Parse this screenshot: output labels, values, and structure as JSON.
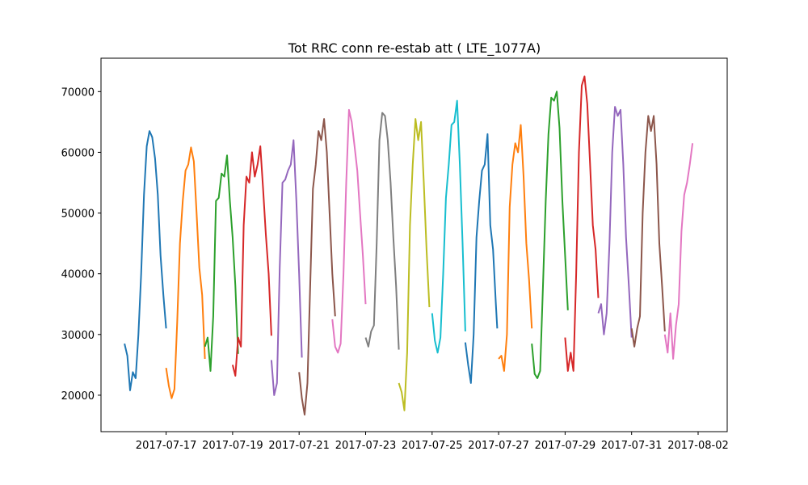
{
  "chart_data": {
    "type": "line",
    "title": "Tot RRC conn re-estab att ( LTE_1077A)",
    "xlabel": "",
    "ylabel": "",
    "x_ticks": [
      "2017-07-17",
      "2017-07-19",
      "2017-07-21",
      "2017-07-23",
      "2017-07-25",
      "2017-07-27",
      "2017-07-29",
      "2017-07-31",
      "2017-08-02"
    ],
    "y_ticks": [
      20000,
      30000,
      40000,
      50000,
      60000,
      70000
    ],
    "xlim": [
      "2017-07-15 01:00",
      "2017-08-02 21:00"
    ],
    "ylim": [
      14000,
      75500
    ],
    "grid": false,
    "series": [
      {
        "color": "#1f77b4",
        "points": [
          [
            "2017-07-15 18:00",
            28500
          ],
          [
            "2017-07-15 20:00",
            26500
          ],
          [
            "2017-07-15 22:00",
            20800
          ],
          [
            "2017-07-16 00:00",
            23800
          ],
          [
            "2017-07-16 02:00",
            22800
          ],
          [
            "2017-07-16 04:00",
            30000
          ],
          [
            "2017-07-16 06:00",
            40000
          ],
          [
            "2017-07-16 08:00",
            53000
          ],
          [
            "2017-07-16 10:00",
            61000
          ],
          [
            "2017-07-16 12:00",
            63500
          ],
          [
            "2017-07-16 14:00",
            62500
          ],
          [
            "2017-07-16 16:00",
            59000
          ],
          [
            "2017-07-16 18:00",
            53000
          ],
          [
            "2017-07-16 20:00",
            43000
          ],
          [
            "2017-07-16 22:00",
            36500
          ],
          [
            "2017-07-17 00:00",
            31000
          ]
        ]
      },
      {
        "color": "#ff7f0e",
        "points": [
          [
            "2017-07-17 00:00",
            24500
          ],
          [
            "2017-07-17 02:00",
            21500
          ],
          [
            "2017-07-17 04:00",
            19500
          ],
          [
            "2017-07-17 06:00",
            21000
          ],
          [
            "2017-07-17 08:00",
            32000
          ],
          [
            "2017-07-17 10:00",
            45000
          ],
          [
            "2017-07-17 12:00",
            52000
          ],
          [
            "2017-07-17 14:00",
            57000
          ],
          [
            "2017-07-17 16:00",
            58000
          ],
          [
            "2017-07-17 18:00",
            60800
          ],
          [
            "2017-07-17 20:00",
            58500
          ],
          [
            "2017-07-17 22:00",
            50000
          ],
          [
            "2017-07-18 00:00",
            41000
          ],
          [
            "2017-07-18 02:00",
            36500
          ],
          [
            "2017-07-18 04:00",
            26000
          ]
        ]
      },
      {
        "color": "#2ca02c",
        "points": [
          [
            "2017-07-18 04:00",
            28000
          ],
          [
            "2017-07-18 06:00",
            29500
          ],
          [
            "2017-07-18 08:00",
            24000
          ],
          [
            "2017-07-18 10:00",
            33000
          ],
          [
            "2017-07-18 12:00",
            52000
          ],
          [
            "2017-07-18 14:00",
            52500
          ],
          [
            "2017-07-18 16:00",
            56500
          ],
          [
            "2017-07-18 18:00",
            56000
          ],
          [
            "2017-07-18 20:00",
            59500
          ],
          [
            "2017-07-18 22:00",
            52000
          ],
          [
            "2017-07-19 00:00",
            46000
          ],
          [
            "2017-07-19 02:00",
            38000
          ],
          [
            "2017-07-19 04:00",
            26800
          ]
        ]
      },
      {
        "color": "#d62728",
        "points": [
          [
            "2017-07-19 00:00",
            25000
          ],
          [
            "2017-07-19 02:00",
            23200
          ],
          [
            "2017-07-19 04:00",
            29500
          ],
          [
            "2017-07-19 06:00",
            28000
          ],
          [
            "2017-07-19 08:00",
            48000
          ],
          [
            "2017-07-19 10:00",
            56000
          ],
          [
            "2017-07-19 12:00",
            55000
          ],
          [
            "2017-07-19 14:00",
            60000
          ],
          [
            "2017-07-19 16:00",
            56000
          ],
          [
            "2017-07-19 18:00",
            58000
          ],
          [
            "2017-07-19 20:00",
            61000
          ],
          [
            "2017-07-19 22:00",
            54000
          ],
          [
            "2017-07-20 00:00",
            46500
          ],
          [
            "2017-07-20 02:00",
            40000
          ],
          [
            "2017-07-20 04:00",
            29800
          ]
        ]
      },
      {
        "color": "#9467bd",
        "points": [
          [
            "2017-07-20 04:00",
            25800
          ],
          [
            "2017-07-20 06:00",
            20000
          ],
          [
            "2017-07-20 08:00",
            22000
          ],
          [
            "2017-07-20 10:00",
            41000
          ],
          [
            "2017-07-20 12:00",
            55000
          ],
          [
            "2017-07-20 14:00",
            55500
          ],
          [
            "2017-07-20 16:00",
            57000
          ],
          [
            "2017-07-20 18:00",
            58000
          ],
          [
            "2017-07-20 20:00",
            62000
          ],
          [
            "2017-07-20 22:00",
            52000
          ],
          [
            "2017-07-21 00:00",
            40000
          ],
          [
            "2017-07-21 02:00",
            26200
          ]
        ]
      },
      {
        "color": "#8c564b",
        "points": [
          [
            "2017-07-21 00:00",
            23800
          ],
          [
            "2017-07-21 02:00",
            19500
          ],
          [
            "2017-07-21 04:00",
            16800
          ],
          [
            "2017-07-21 06:00",
            22000
          ],
          [
            "2017-07-21 08:00",
            38000
          ],
          [
            "2017-07-21 10:00",
            54000
          ],
          [
            "2017-07-21 12:00",
            58000
          ],
          [
            "2017-07-21 14:00",
            63500
          ],
          [
            "2017-07-21 16:00",
            62000
          ],
          [
            "2017-07-21 18:00",
            65500
          ],
          [
            "2017-07-21 20:00",
            60000
          ],
          [
            "2017-07-21 22:00",
            50000
          ],
          [
            "2017-07-22 00:00",
            40000
          ],
          [
            "2017-07-22 02:00",
            33000
          ]
        ]
      },
      {
        "color": "#e377c2",
        "points": [
          [
            "2017-07-22 00:00",
            32500
          ],
          [
            "2017-07-22 02:00",
            28000
          ],
          [
            "2017-07-22 04:00",
            27000
          ],
          [
            "2017-07-22 06:00",
            28500
          ],
          [
            "2017-07-22 08:00",
            40000
          ],
          [
            "2017-07-22 10:00",
            55000
          ],
          [
            "2017-07-22 12:00",
            67000
          ],
          [
            "2017-07-22 14:00",
            65000
          ],
          [
            "2017-07-22 16:00",
            61000
          ],
          [
            "2017-07-22 18:00",
            57000
          ],
          [
            "2017-07-22 20:00",
            50000
          ],
          [
            "2017-07-22 22:00",
            43000
          ],
          [
            "2017-07-23 00:00",
            35000
          ]
        ]
      },
      {
        "color": "#7f7f7f",
        "points": [
          [
            "2017-07-23 00:00",
            29500
          ],
          [
            "2017-07-23 02:00",
            28000
          ],
          [
            "2017-07-23 04:00",
            30500
          ],
          [
            "2017-07-23 06:00",
            31500
          ],
          [
            "2017-07-23 08:00",
            45000
          ],
          [
            "2017-07-23 10:00",
            62000
          ],
          [
            "2017-07-23 12:00",
            66500
          ],
          [
            "2017-07-23 14:00",
            66000
          ],
          [
            "2017-07-23 16:00",
            62000
          ],
          [
            "2017-07-23 18:00",
            55000
          ],
          [
            "2017-07-23 20:00",
            46000
          ],
          [
            "2017-07-23 22:00",
            38000
          ],
          [
            "2017-07-24 00:00",
            27500
          ]
        ]
      },
      {
        "color": "#bcbd22",
        "points": [
          [
            "2017-07-24 00:00",
            22000
          ],
          [
            "2017-07-24 02:00",
            20500
          ],
          [
            "2017-07-24 04:00",
            17500
          ],
          [
            "2017-07-24 06:00",
            27000
          ],
          [
            "2017-07-24 08:00",
            48000
          ],
          [
            "2017-07-24 10:00",
            58000
          ],
          [
            "2017-07-24 12:00",
            65500
          ],
          [
            "2017-07-24 14:00",
            62000
          ],
          [
            "2017-07-24 16:00",
            65000
          ],
          [
            "2017-07-24 18:00",
            55000
          ],
          [
            "2017-07-24 20:00",
            44000
          ],
          [
            "2017-07-24 22:00",
            34500
          ]
        ]
      },
      {
        "color": "#17becf",
        "points": [
          [
            "2017-07-25 00:00",
            33500
          ],
          [
            "2017-07-25 02:00",
            29000
          ],
          [
            "2017-07-25 04:00",
            27000
          ],
          [
            "2017-07-25 06:00",
            29500
          ],
          [
            "2017-07-25 08:00",
            40000
          ],
          [
            "2017-07-25 10:00",
            52500
          ],
          [
            "2017-07-25 12:00",
            58000
          ],
          [
            "2017-07-25 14:00",
            64500
          ],
          [
            "2017-07-25 16:00",
            65000
          ],
          [
            "2017-07-25 18:00",
            68500
          ],
          [
            "2017-07-25 20:00",
            58000
          ],
          [
            "2017-07-25 22:00",
            45000
          ],
          [
            "2017-07-26 00:00",
            30500
          ]
        ]
      },
      {
        "color": "#1f77b4",
        "points": [
          [
            "2017-07-26 00:00",
            28700
          ],
          [
            "2017-07-26 02:00",
            25000
          ],
          [
            "2017-07-26 04:00",
            22000
          ],
          [
            "2017-07-26 06:00",
            30000
          ],
          [
            "2017-07-26 08:00",
            46000
          ],
          [
            "2017-07-26 10:00",
            52000
          ],
          [
            "2017-07-26 12:00",
            57000
          ],
          [
            "2017-07-26 14:00",
            58000
          ],
          [
            "2017-07-26 16:00",
            63000
          ],
          [
            "2017-07-26 18:00",
            48000
          ],
          [
            "2017-07-26 20:00",
            44000
          ],
          [
            "2017-07-26 22:00",
            35000
          ],
          [
            "2017-07-26 23:00",
            31000
          ]
        ]
      },
      {
        "color": "#ff7f0e",
        "points": [
          [
            "2017-07-27 00:00",
            26000
          ],
          [
            "2017-07-27 02:00",
            26500
          ],
          [
            "2017-07-27 04:00",
            24000
          ],
          [
            "2017-07-27 06:00",
            30000
          ],
          [
            "2017-07-27 08:00",
            51000
          ],
          [
            "2017-07-27 10:00",
            58000
          ],
          [
            "2017-07-27 12:00",
            61500
          ],
          [
            "2017-07-27 14:00",
            60000
          ],
          [
            "2017-07-27 16:00",
            64500
          ],
          [
            "2017-07-27 18:00",
            56000
          ],
          [
            "2017-07-27 20:00",
            45000
          ],
          [
            "2017-07-27 22:00",
            39000
          ],
          [
            "2017-07-28 00:00",
            31000
          ]
        ]
      },
      {
        "color": "#2ca02c",
        "points": [
          [
            "2017-07-28 00:00",
            28500
          ],
          [
            "2017-07-28 02:00",
            23500
          ],
          [
            "2017-07-28 04:00",
            22800
          ],
          [
            "2017-07-28 06:00",
            24000
          ],
          [
            "2017-07-28 08:00",
            38000
          ],
          [
            "2017-07-28 10:00",
            52000
          ],
          [
            "2017-07-28 12:00",
            63000
          ],
          [
            "2017-07-28 14:00",
            69000
          ],
          [
            "2017-07-28 16:00",
            68500
          ],
          [
            "2017-07-28 18:00",
            70000
          ],
          [
            "2017-07-28 20:00",
            64000
          ],
          [
            "2017-07-28 22:00",
            52000
          ],
          [
            "2017-07-29 00:00",
            43000
          ],
          [
            "2017-07-29 02:00",
            34000
          ]
        ]
      },
      {
        "color": "#d62728",
        "points": [
          [
            "2017-07-29 00:00",
            29500
          ],
          [
            "2017-07-29 02:00",
            24000
          ],
          [
            "2017-07-29 04:00",
            27000
          ],
          [
            "2017-07-29 06:00",
            24000
          ],
          [
            "2017-07-29 08:00",
            40000
          ],
          [
            "2017-07-29 10:00",
            60000
          ],
          [
            "2017-07-29 12:00",
            71000
          ],
          [
            "2017-07-29 14:00",
            72500
          ],
          [
            "2017-07-29 16:00",
            68000
          ],
          [
            "2017-07-29 18:00",
            58000
          ],
          [
            "2017-07-29 20:00",
            48000
          ],
          [
            "2017-07-29 22:00",
            44000
          ],
          [
            "2017-07-30 00:00",
            36000
          ]
        ]
      },
      {
        "color": "#9467bd",
        "points": [
          [
            "2017-07-30 00:00",
            33500
          ],
          [
            "2017-07-30 02:00",
            35000
          ],
          [
            "2017-07-30 04:00",
            30000
          ],
          [
            "2017-07-30 06:00",
            33500
          ],
          [
            "2017-07-30 08:00",
            45000
          ],
          [
            "2017-07-30 10:00",
            60000
          ],
          [
            "2017-07-30 12:00",
            67500
          ],
          [
            "2017-07-30 14:00",
            66000
          ],
          [
            "2017-07-30 16:00",
            67000
          ],
          [
            "2017-07-30 18:00",
            58000
          ],
          [
            "2017-07-30 20:00",
            46000
          ],
          [
            "2017-07-30 22:00",
            38000
          ],
          [
            "2017-07-31 00:00",
            29500
          ]
        ]
      },
      {
        "color": "#8c564b",
        "points": [
          [
            "2017-07-31 00:00",
            31000
          ],
          [
            "2017-07-31 02:00",
            28000
          ],
          [
            "2017-07-31 04:00",
            31000
          ],
          [
            "2017-07-31 06:00",
            33000
          ],
          [
            "2017-07-31 08:00",
            50000
          ],
          [
            "2017-07-31 10:00",
            60000
          ],
          [
            "2017-07-31 12:00",
            66000
          ],
          [
            "2017-07-31 14:00",
            63500
          ],
          [
            "2017-07-31 16:00",
            66000
          ],
          [
            "2017-07-31 18:00",
            58000
          ],
          [
            "2017-07-31 20:00",
            45000
          ],
          [
            "2017-07-31 22:00",
            38000
          ],
          [
            "2017-08-01 00:00",
            30500
          ]
        ]
      },
      {
        "color": "#e377c2",
        "points": [
          [
            "2017-08-01 00:00",
            30000
          ],
          [
            "2017-08-01 02:00",
            27000
          ],
          [
            "2017-08-01 04:00",
            33500
          ],
          [
            "2017-08-01 06:00",
            26000
          ],
          [
            "2017-08-01 08:00",
            31500
          ],
          [
            "2017-08-01 10:00",
            35000
          ],
          [
            "2017-08-01 12:00",
            47000
          ],
          [
            "2017-08-01 14:00",
            53000
          ],
          [
            "2017-08-01 16:00",
            55000
          ],
          [
            "2017-08-01 18:00",
            58000
          ],
          [
            "2017-08-01 20:00",
            61500
          ]
        ]
      }
    ]
  }
}
